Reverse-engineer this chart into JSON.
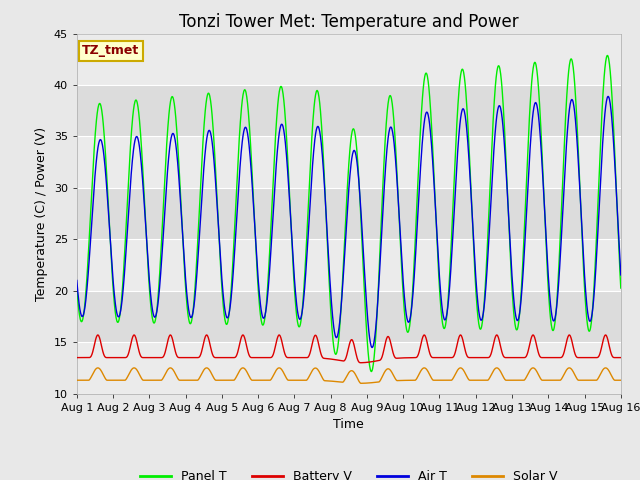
{
  "title": "Tonzi Tower Met: Temperature and Power",
  "xlabel": "Time",
  "ylabel": "Temperature (C) / Power (V)",
  "ylim": [
    10,
    45
  ],
  "xlim_days": 15,
  "annotation_text": "TZ_tmet",
  "annotation_color": "#8B0000",
  "annotation_bg": "#FFFFCC",
  "annotation_border": "#CCAA00",
  "colors": {
    "Panel T": "#00EE00",
    "Battery V": "#DD0000",
    "Air T": "#0000DD",
    "Solar V": "#DD8800"
  },
  "band_light": "#EBEBEB",
  "band_dark": "#D8D8D8",
  "fig_bg": "#E8E8E8",
  "title_fontsize": 12,
  "label_fontsize": 9,
  "tick_fontsize": 8,
  "legend_fontsize": 9
}
